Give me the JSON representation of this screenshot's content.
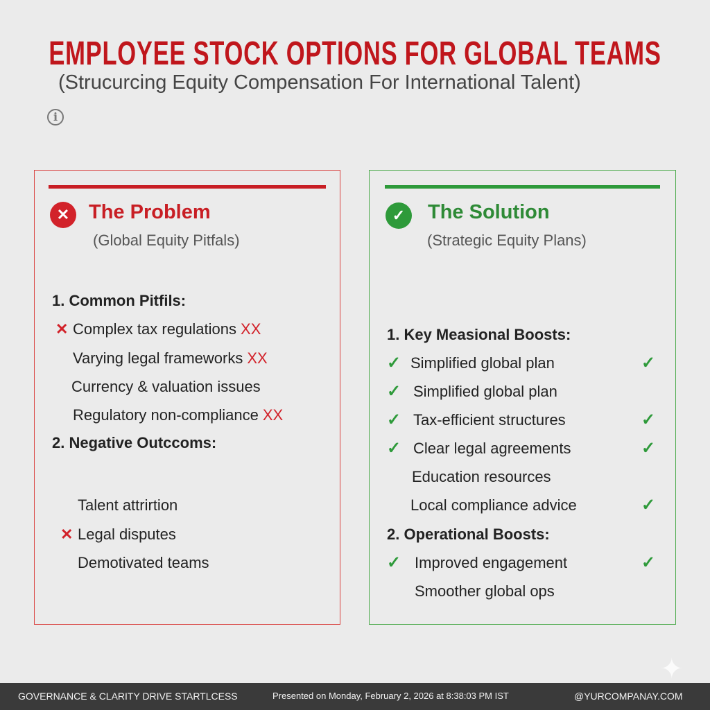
{
  "header": {
    "title": "EMPLOYEE STOCK OPTIONS FOR GLOBAL TEAMS",
    "subtitle": "(Strucurcing Equity Compensation For International Talent)",
    "info_icon": "info-icon"
  },
  "colors": {
    "accent_red": "#c0161c",
    "accent_green": "#2e9a3a",
    "background": "#ebebeb",
    "footer": "#3a3a3a"
  },
  "problem": {
    "title": "The Problem",
    "subtitle": "(Global Equity Pitfals)",
    "icon": "x-circle-icon",
    "sections": [
      {
        "heading": "1. Common Pitfils:",
        "items": [
          {
            "text": "Complex tax regulations",
            "suffix": "XX",
            "mark": true
          },
          {
            "text": "Varying legal frameworks",
            "suffix": "XX",
            "mark": false
          },
          {
            "text": "Currency & valuation issues",
            "suffix": "",
            "mark": false
          },
          {
            "text": "Regulatory non-compliance",
            "suffix": "XX",
            "mark": false
          }
        ]
      },
      {
        "heading": "2. Negative Outccoms:",
        "items": [
          {
            "text": "Talent attrirtion",
            "suffix": "",
            "mark": false
          },
          {
            "text": "Legal disputes",
            "suffix": "",
            "mark": true
          },
          {
            "text": "Demotivated teams",
            "suffix": "",
            "mark": false
          }
        ]
      }
    ]
  },
  "solution": {
    "title": "The Solution",
    "subtitle": "(Strategic Equity Plans)",
    "icon": "check-circle-icon",
    "sections": [
      {
        "heading": "1. Key Measional Boosts:",
        "items": [
          {
            "text": "Simplified global plan",
            "left_check": true,
            "right_check": true
          },
          {
            "text": "Simplified global plan",
            "left_check": true,
            "right_check": false
          },
          {
            "text": "Tax-efficient structures",
            "left_check": true,
            "right_check": true
          },
          {
            "text": "Clear legal agreements",
            "left_check": true,
            "right_check": true
          },
          {
            "text": "Education resources",
            "left_check": false,
            "right_check": false
          },
          {
            "text": "Local compliance advice",
            "left_check": false,
            "right_check": true
          }
        ]
      },
      {
        "heading": "2. Operational Boosts:",
        "items": [
          {
            "text": "Improved engagement",
            "left_check": true,
            "right_check": true
          },
          {
            "text": "Smoother global ops",
            "left_check": false,
            "right_check": false
          }
        ]
      }
    ]
  },
  "footer": {
    "left": "GOVERNANCE & CLARITY DRIVE STARTLCESS",
    "center": "Presented on Monday, February 2, 2026 at 8:38:03 PM IST",
    "right": "@YURCOMPANAY.COM"
  }
}
